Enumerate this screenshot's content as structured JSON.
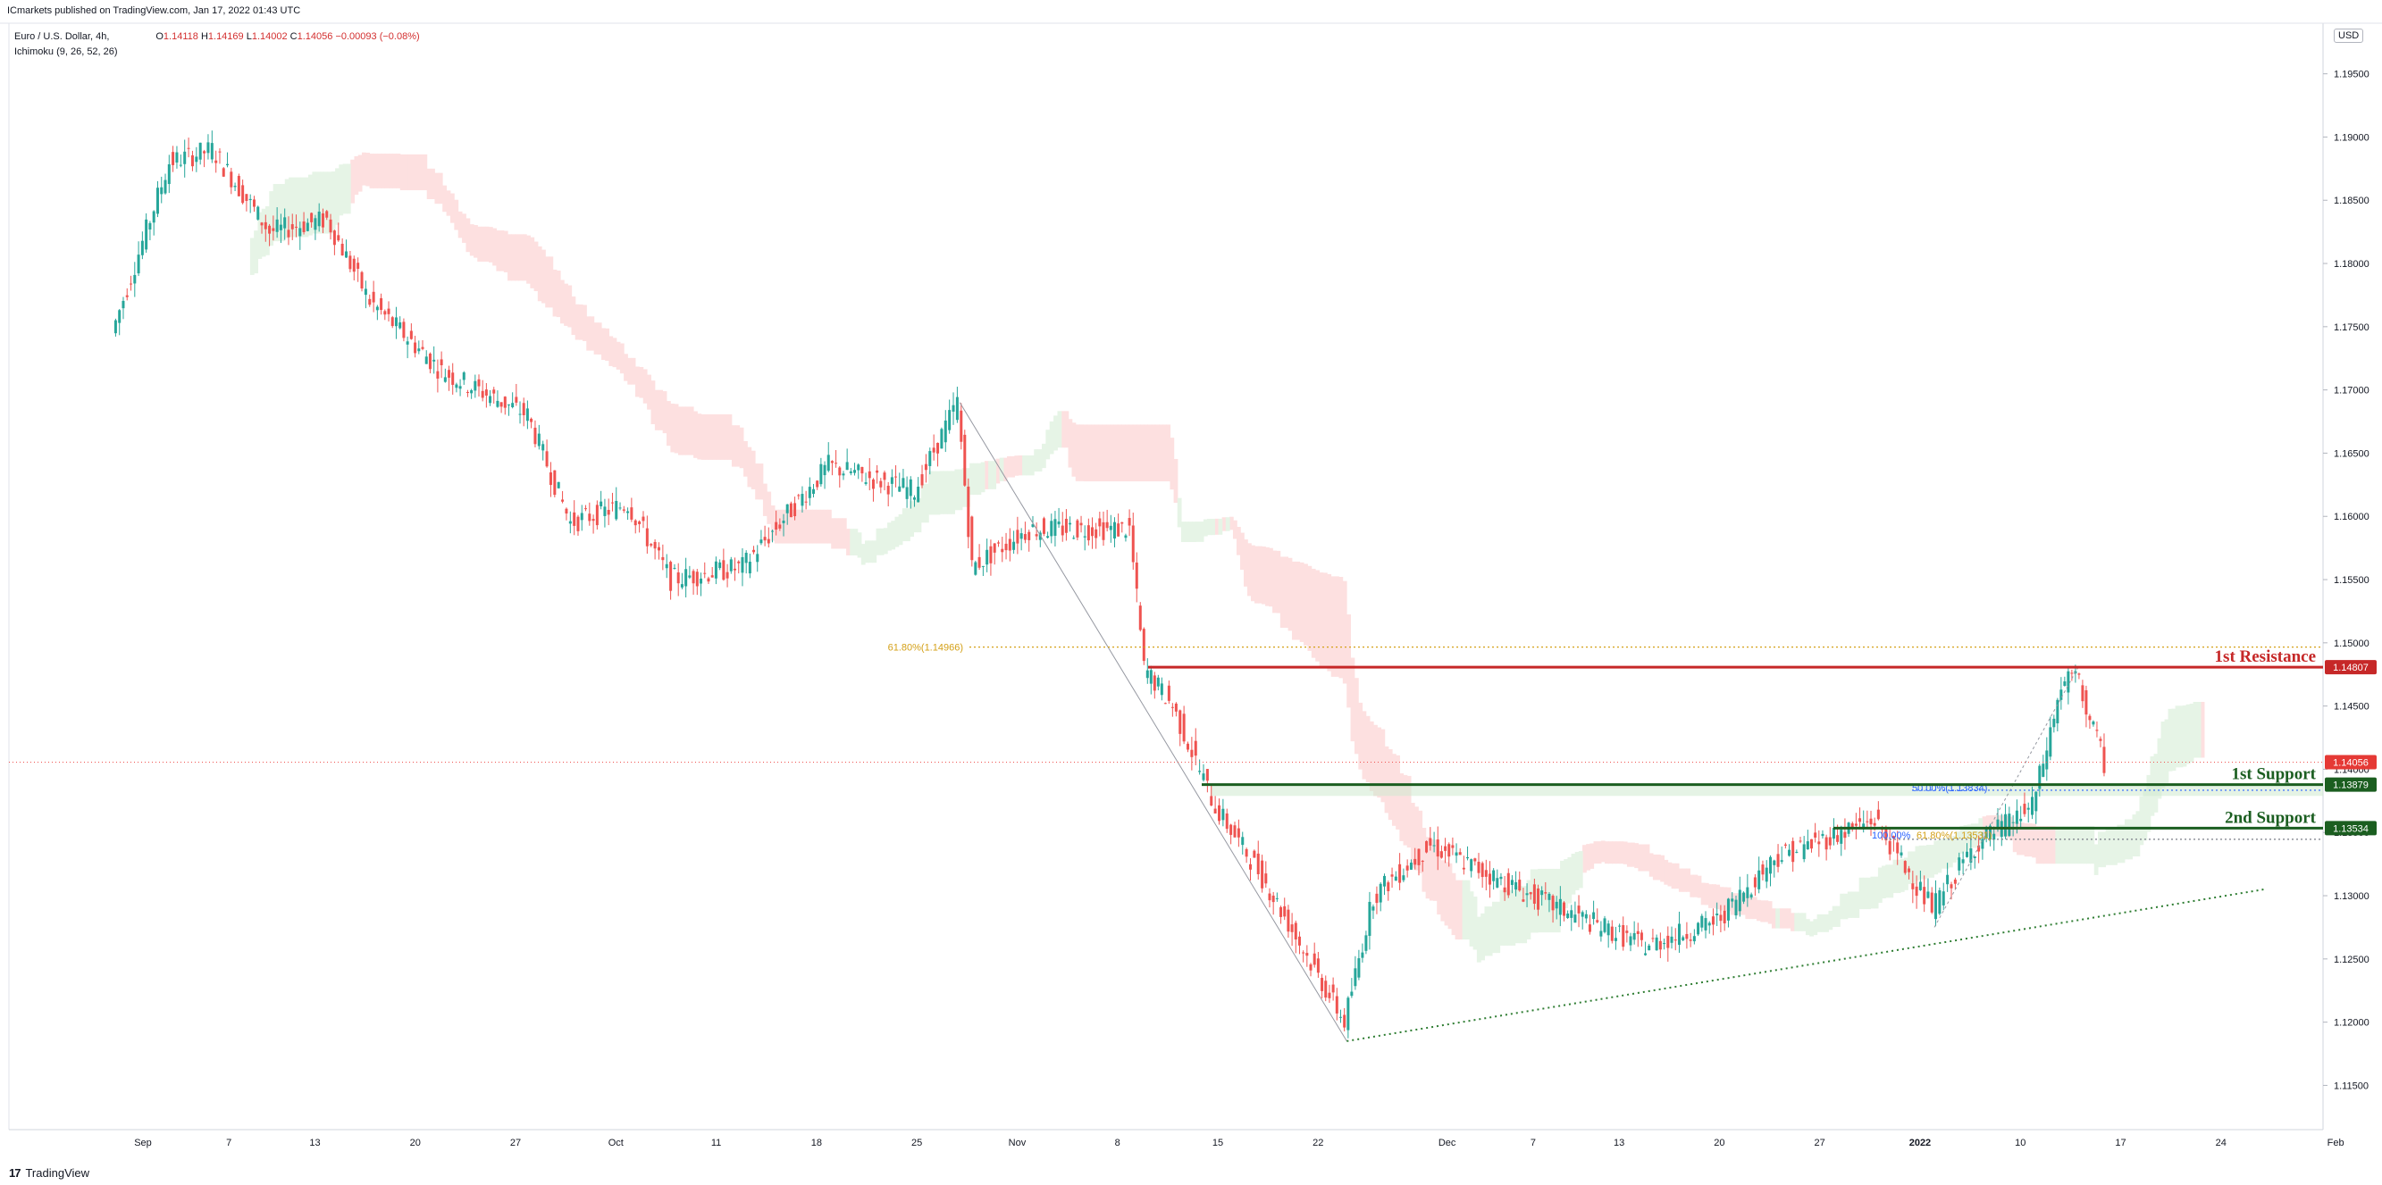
{
  "header": {
    "published": "ICmarkets published on TradingView.com, Jan 17, 2022 01:43 UTC",
    "symbol": "Euro / U.S. Dollar, 4h,",
    "open_label": "O",
    "open": "1.14118",
    "high_label": "H",
    "high": "1.14169",
    "low_label": "L",
    "low": "1.14002",
    "close_label": "C",
    "close": "1.14056",
    "change": "−0.00093 (−0.08%)",
    "indicator": "Ichimoku (9, 26, 52, 26)"
  },
  "currency": "USD",
  "footer": {
    "brand": "TradingView"
  },
  "colors": {
    "up": "#26a69a",
    "down": "#ef5350",
    "resistance": "#c62828",
    "support": "#1b5e20",
    "fib": "#d4a017",
    "fib_blue": "#2962ff",
    "trend": "#2e7d32",
    "cloud_bear": "#fde0e0",
    "cloud_bull": "#e6f4e6"
  },
  "chart_data": {
    "type": "candlestick",
    "timeframe": "4h",
    "ylim": [
      1.1115,
      1.199
    ],
    "y_ticks": [
      "1.11500",
      "1.12000",
      "1.12500",
      "1.13000",
      "1.13500",
      "1.14000",
      "1.14500",
      "1.15000",
      "1.15500",
      "1.16000",
      "1.16500",
      "1.17000",
      "1.17500",
      "1.18000",
      "1.18500",
      "1.19000",
      "1.19500"
    ],
    "x_ticks": [
      "Sep",
      "7",
      "13",
      "20",
      "27",
      "Oct",
      "11",
      "18",
      "25",
      "Nov",
      "8",
      "15",
      "22",
      "Dec",
      "7",
      "13",
      "20",
      "27",
      "2022",
      "10",
      "17",
      "24",
      "Feb"
    ],
    "price_path": [
      {
        "date": "Aug 30",
        "price": 1.1745
      },
      {
        "date": "Sep 3",
        "price": 1.188
      },
      {
        "date": "Sep 6",
        "price": 1.189
      },
      {
        "date": "Sep 10",
        "price": 1.1825
      },
      {
        "date": "Sep 14",
        "price": 1.1835
      },
      {
        "date": "Sep 17",
        "price": 1.177
      },
      {
        "date": "Sep 22",
        "price": 1.1715
      },
      {
        "date": "Sep 28",
        "price": 1.168
      },
      {
        "date": "Oct 1",
        "price": 1.1595
      },
      {
        "date": "Oct 5",
        "price": 1.161
      },
      {
        "date": "Oct 8",
        "price": 1.155
      },
      {
        "date": "Oct 13",
        "price": 1.156
      },
      {
        "date": "Oct 19",
        "price": 1.164
      },
      {
        "date": "Oct 25",
        "price": 1.162
      },
      {
        "date": "Oct 28",
        "price": 1.169
      },
      {
        "date": "Oct 29",
        "price": 1.156
      },
      {
        "date": "Nov 2",
        "price": 1.159
      },
      {
        "date": "Nov 9",
        "price": 1.159
      },
      {
        "date": "Nov 10",
        "price": 1.148
      },
      {
        "date": "Nov 12",
        "price": 1.145
      },
      {
        "date": "Nov 15",
        "price": 1.137
      },
      {
        "date": "Nov 18",
        "price": 1.132
      },
      {
        "date": "Nov 24",
        "price": 1.12
      },
      {
        "date": "Nov 26",
        "price": 1.13
      },
      {
        "date": "Nov 30",
        "price": 1.134
      },
      {
        "date": "Dec 7",
        "price": 1.13
      },
      {
        "date": "Dec 15",
        "price": 1.126
      },
      {
        "date": "Dec 20",
        "price": 1.128
      },
      {
        "date": "Dec 24",
        "price": 1.133
      },
      {
        "date": "Dec 31",
        "price": 1.136
      },
      {
        "date": "Jan 4",
        "price": 1.129
      },
      {
        "date": "Jan 7",
        "price": 1.134
      },
      {
        "date": "Jan 11",
        "price": 1.137
      },
      {
        "date": "Jan 13",
        "price": 1.1465
      },
      {
        "date": "Jan 14",
        "price": 1.1475
      },
      {
        "date": "Jan 16",
        "price": 1.1405
      }
    ],
    "levels": [
      {
        "name": "1st Resistance",
        "price": 1.14807,
        "price_label": "1.14807",
        "color": "#c62828"
      },
      {
        "name": "1st Support",
        "price": 1.13879,
        "price_label": "1.13879",
        "color": "#1b5e20"
      },
      {
        "name": "2nd Support",
        "price": 1.13534,
        "price_label": "1.13534",
        "color": "#1b5e20"
      }
    ],
    "current_price": {
      "price": 1.14056,
      "price_label": "1.14056"
    },
    "fib_labels": [
      {
        "text": "61.80%(1.14966)",
        "price": 1.14966
      },
      {
        "text": "50.00%(1.13834)",
        "price": 1.13834
      },
      {
        "text": "61.80%(1.13531)",
        "price": 1.13531
      },
      {
        "text": "100.00%",
        "price": 1.13531
      }
    ],
    "trendline": [
      {
        "date": "Nov 24",
        "price": 1.1185
      },
      {
        "date": "Jan 27",
        "price": 1.1305
      }
    ]
  }
}
